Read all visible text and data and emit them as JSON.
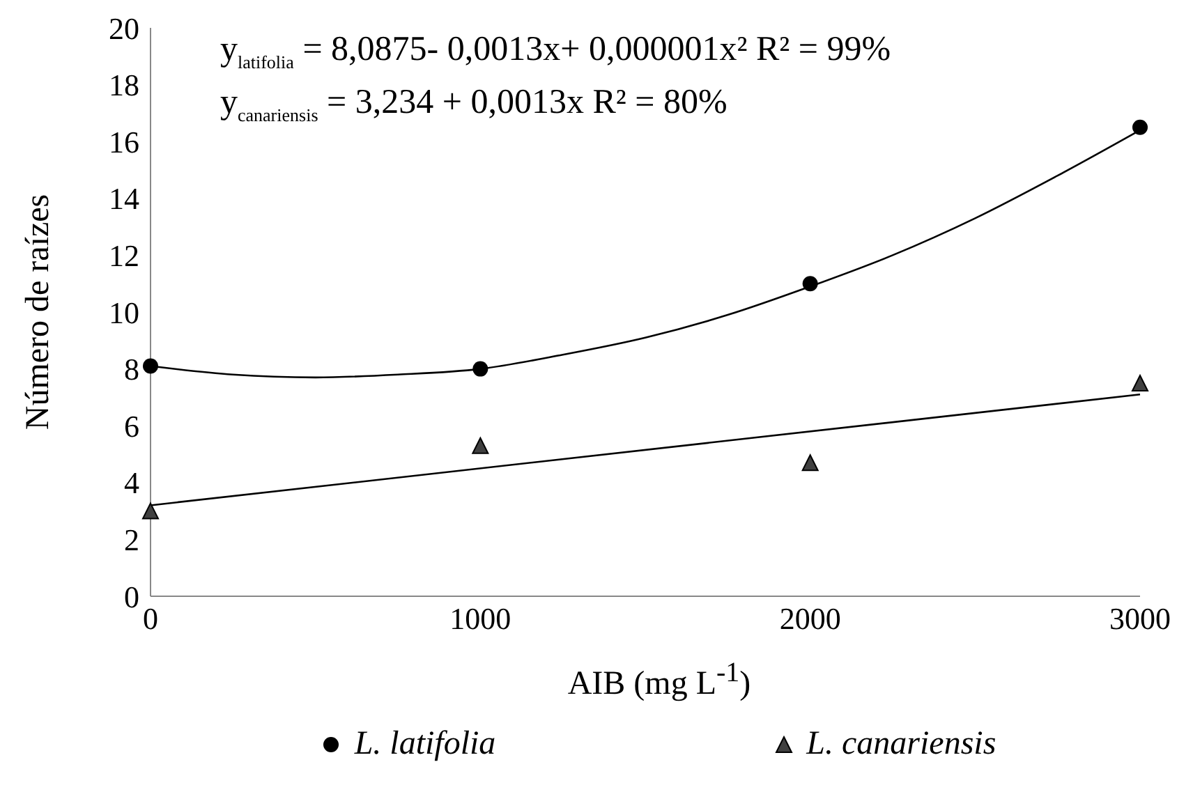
{
  "chart_data": {
    "type": "scatter",
    "xlabel": "AIB (mg L$^{-1}$)",
    "ylabel": "Número de raízes",
    "xlim": [
      0,
      3000
    ],
    "xticks": [
      0,
      1000,
      2000,
      3000
    ],
    "ylim": [
      0,
      20
    ],
    "yticks": [
      0,
      2,
      4,
      6,
      8,
      10,
      12,
      14,
      16,
      18,
      20
    ],
    "legend": "bottom",
    "annotations": [
      "y$_{latifolia}$ = 8,0875- 0,0013x+ 0,000001x²   R² = 99%",
      "y$_{canariensis}$ = 3,234 + 0,0013x R² = 80%"
    ],
    "series": [
      {
        "name": "L. latifolia",
        "marker": "circle",
        "color": "#000000",
        "x": [
          0,
          1000,
          2000,
          3000
        ],
        "values": [
          8.1,
          8.0,
          11.0,
          16.5
        ]
      },
      {
        "name": "L. canariensis",
        "marker": "triangle",
        "color": "#404040",
        "x": [
          0,
          1000,
          2000,
          3000
        ],
        "values": [
          3.0,
          5.3,
          4.7,
          7.5
        ]
      },
      {
        "type": "line",
        "color": "#000000",
        "x": [
          0,
          250,
          500,
          750,
          1000,
          1250,
          1500,
          1750,
          2000,
          2250,
          2500,
          2750,
          3000
        ],
        "values": [
          8.1,
          7.8,
          7.7,
          7.8,
          8.0,
          8.5,
          9.1,
          9.9,
          10.9,
          12.0,
          13.3,
          14.8,
          16.4
        ]
      },
      {
        "type": "line",
        "color": "#000000",
        "x": [
          0,
          3000
        ],
        "values": [
          3.2,
          7.1
        ]
      }
    ]
  }
}
